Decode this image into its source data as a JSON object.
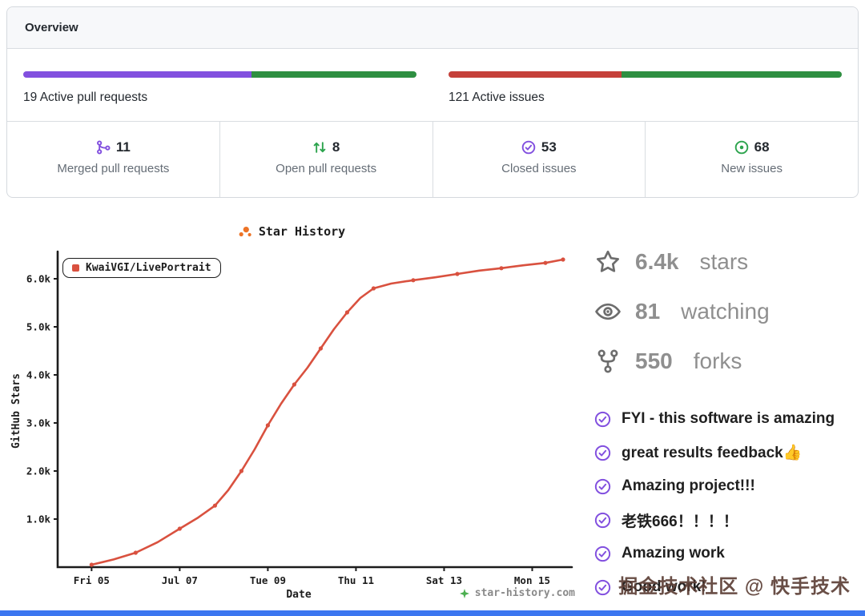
{
  "colors": {
    "purple": "#8250df",
    "green": "#2da44e",
    "bar_green": "#2e8f41",
    "bar_red": "#c5403a",
    "line": "#d9513f",
    "icon_gray": "#6d6d6d",
    "stat_text": "#8f8f8f",
    "orange": "#ed7326",
    "credit_green": "#4caf50",
    "axis": "#1c1c1c",
    "blue_strip": "#3b76f0"
  },
  "overview": {
    "title": "Overview",
    "pull_requests": {
      "count": "19",
      "label": "Active pull requests",
      "segments": [
        {
          "pct": 58,
          "color": "#8250df"
        },
        {
          "pct": 42,
          "color": "#2e8f41"
        }
      ]
    },
    "issues": {
      "count": "121",
      "label": "Active issues",
      "segments": [
        {
          "pct": 44,
          "color": "#c5403a"
        },
        {
          "pct": 56,
          "color": "#2e8f41"
        }
      ]
    },
    "stats": [
      {
        "value": "11",
        "label": "Merged pull requests"
      },
      {
        "value": "8",
        "label": "Open pull requests"
      },
      {
        "value": "53",
        "label": "Closed issues"
      },
      {
        "value": "68",
        "label": "New issues"
      }
    ]
  },
  "chart_data": {
    "type": "line",
    "title": "Star History",
    "xlabel": "Date",
    "ylabel": "GitHub Stars",
    "units": "thousands of stars",
    "xlim": [
      -0.77,
      10.9
    ],
    "ylim": [
      0,
      6.5
    ],
    "grid": false,
    "legend_position": "top-left",
    "x_ticks": [
      {
        "x": 0,
        "label": "Fri 05"
      },
      {
        "x": 2,
        "label": "Jul 07"
      },
      {
        "x": 4,
        "label": "Tue 09"
      },
      {
        "x": 6,
        "label": "Thu 11"
      },
      {
        "x": 8,
        "label": "Sat 13"
      },
      {
        "x": 10,
        "label": "Mon 15"
      }
    ],
    "y_ticks": [
      {
        "v": 1,
        "label": "1.0k"
      },
      {
        "v": 2,
        "label": "2.0k"
      },
      {
        "v": 3,
        "label": "3.0k"
      },
      {
        "v": 4,
        "label": "4.0k"
      },
      {
        "v": 5,
        "label": "5.0k"
      },
      {
        "v": 6,
        "label": "6.0k"
      }
    ],
    "series": [
      {
        "name": "KwaiVGI/LivePortrait",
        "color": "#d9513f",
        "points": [
          [
            0,
            0.05
          ],
          [
            0.5,
            0.16
          ],
          [
            1,
            0.3
          ],
          [
            1.5,
            0.52
          ],
          [
            2,
            0.8
          ],
          [
            2.4,
            1.02
          ],
          [
            2.8,
            1.28
          ],
          [
            3.1,
            1.6
          ],
          [
            3.4,
            2.0
          ],
          [
            3.7,
            2.45
          ],
          [
            4.0,
            2.95
          ],
          [
            4.3,
            3.4
          ],
          [
            4.6,
            3.8
          ],
          [
            4.9,
            4.15
          ],
          [
            5.2,
            4.55
          ],
          [
            5.5,
            4.95
          ],
          [
            5.8,
            5.3
          ],
          [
            6.1,
            5.6
          ],
          [
            6.4,
            5.8
          ],
          [
            6.8,
            5.9
          ],
          [
            7.3,
            5.97
          ],
          [
            7.8,
            6.03
          ],
          [
            8.3,
            6.1
          ],
          [
            8.8,
            6.17
          ],
          [
            9.3,
            6.22
          ],
          [
            9.8,
            6.28
          ],
          [
            10.3,
            6.33
          ],
          [
            10.7,
            6.4
          ]
        ]
      }
    ],
    "credit": "star-history.com"
  },
  "repo": {
    "stats": [
      {
        "value": "6.4k",
        "label": "stars"
      },
      {
        "value": "81",
        "label": "watching"
      },
      {
        "value": "550",
        "label": "forks"
      }
    ],
    "comments": [
      "FYI - this software is amazing",
      "great results feedback👍",
      "Amazing project!!!",
      "老铁666！！！！",
      "Amazing work",
      "Good work!"
    ]
  },
  "watermark": "掘金技术社区 @ 快手技术"
}
